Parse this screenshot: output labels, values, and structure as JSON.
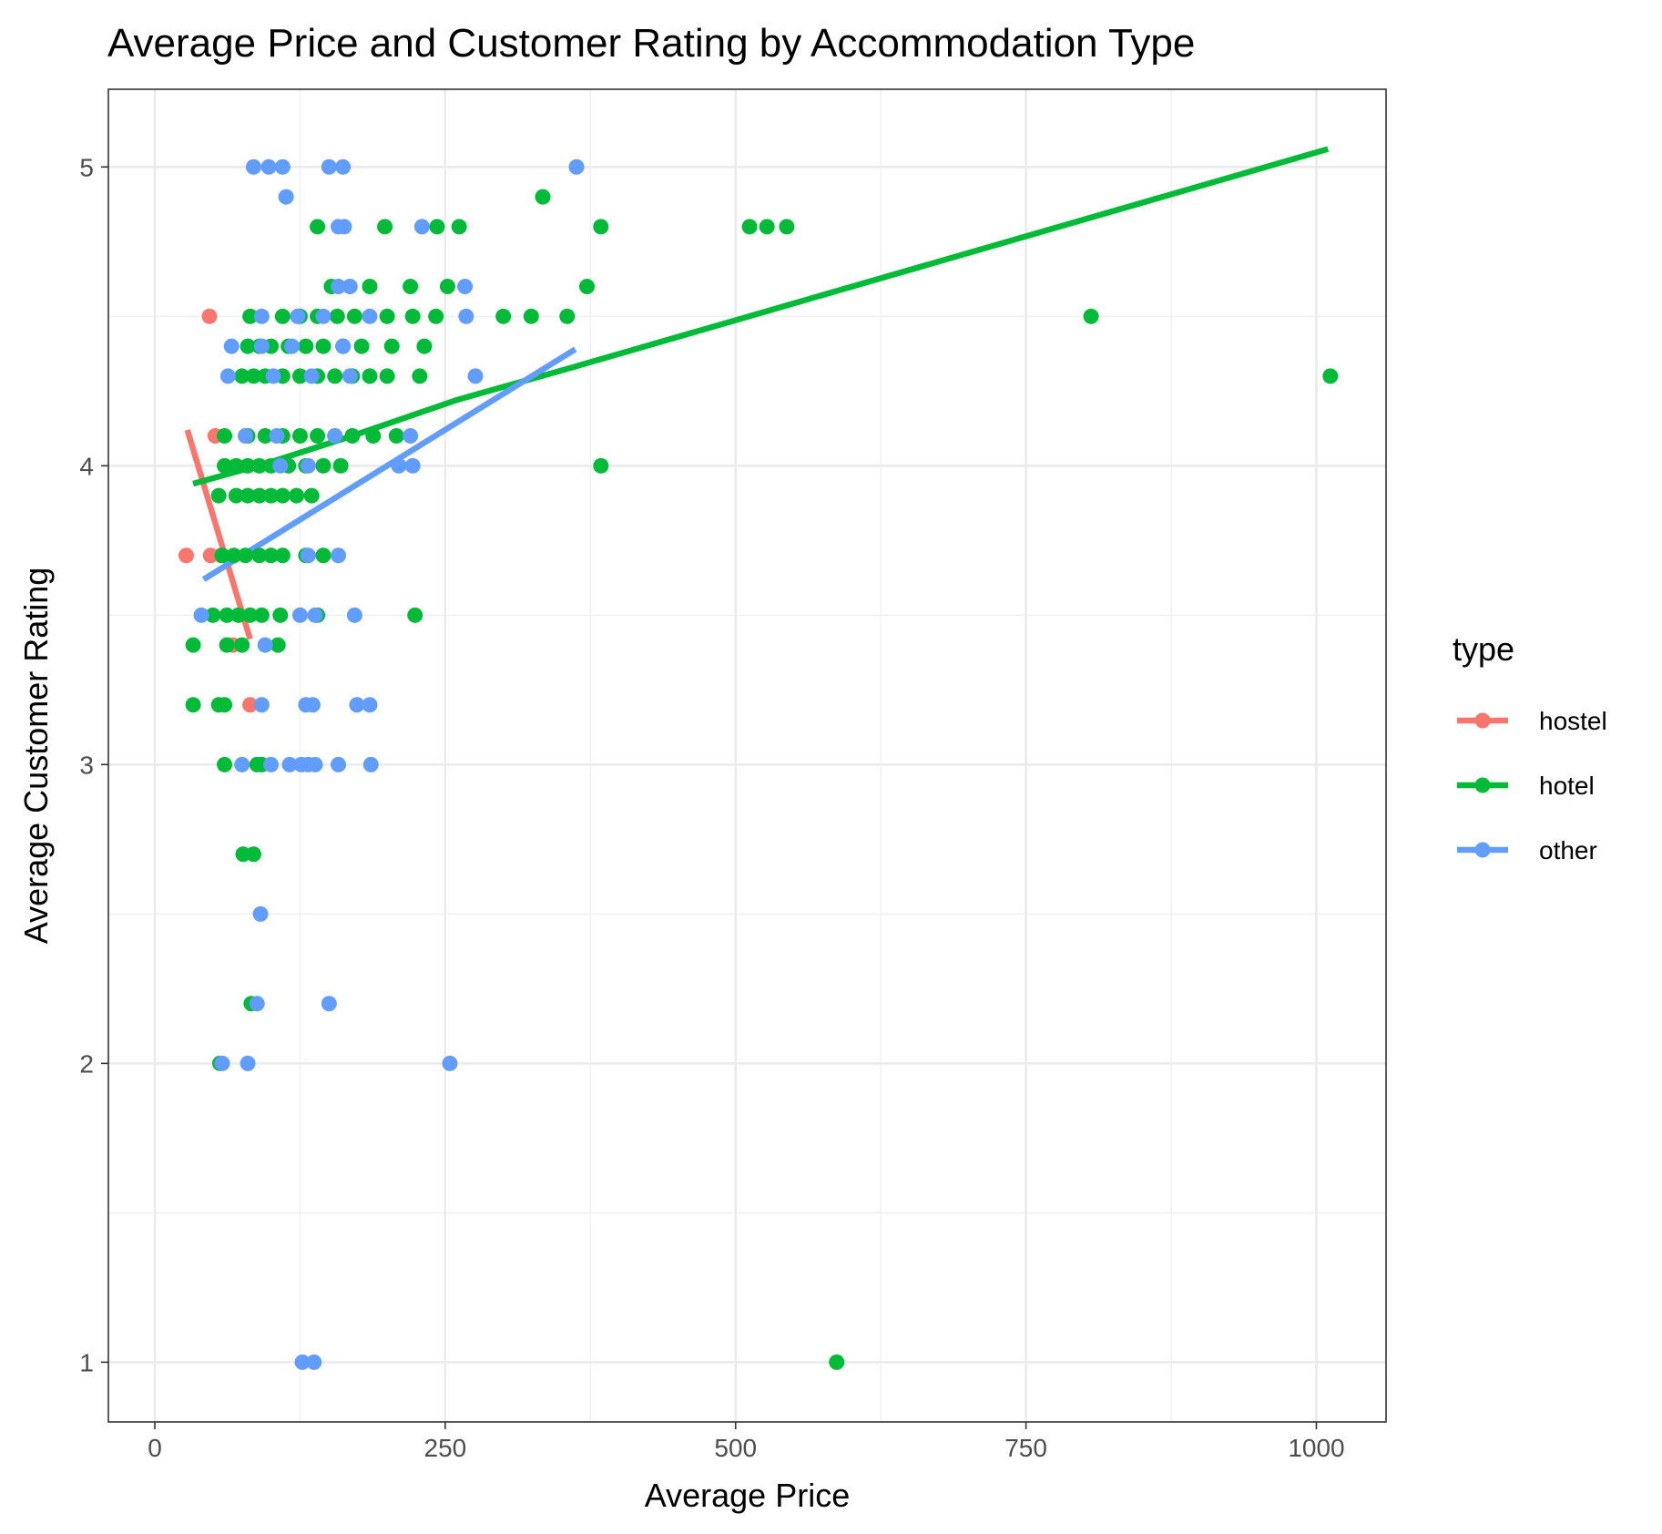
{
  "chart_data": {
    "type": "scatter",
    "title": "Average Price and Customer Rating by Accommodation Type",
    "xlabel": "Average Price",
    "ylabel": "Average Customer Rating",
    "xlim": [
      -40,
      1060
    ],
    "ylim": [
      0.8,
      5.26
    ],
    "x_ticks": [
      0,
      250,
      500,
      750,
      1000
    ],
    "x_tick_labels": [
      "0",
      "250",
      "500",
      "750",
      "1000"
    ],
    "y_ticks": [
      1,
      2,
      3,
      4,
      5
    ],
    "y_tick_labels": [
      "1",
      "2",
      "3",
      "4",
      "5"
    ],
    "grid": true,
    "legend": {
      "title": "type",
      "position": "right"
    },
    "series": [
      {
        "name": "hostel",
        "color": "#F8766D",
        "points": [
          [
            27,
            3.7
          ],
          [
            47,
            4.5
          ],
          [
            52,
            4.1
          ],
          [
            48,
            3.7
          ],
          [
            57,
            3.7
          ],
          [
            67,
            3.4
          ],
          [
            82,
            3.2
          ]
        ],
        "trend": [
          [
            28,
            4.12
          ],
          [
            82,
            3.42
          ]
        ]
      },
      {
        "name": "hotel",
        "color": "#00BA38",
        "points": [
          [
            140,
            4.8
          ],
          [
            198,
            4.8
          ],
          [
            243,
            4.8
          ],
          [
            262,
            4.8
          ],
          [
            334,
            4.9
          ],
          [
            384,
            4.8
          ],
          [
            512,
            4.8
          ],
          [
            527,
            4.8
          ],
          [
            544,
            4.8
          ],
          [
            152,
            4.6
          ],
          [
            185,
            4.6
          ],
          [
            220,
            4.6
          ],
          [
            252,
            4.6
          ],
          [
            372,
            4.6
          ],
          [
            82,
            4.5
          ],
          [
            110,
            4.5
          ],
          [
            125,
            4.5
          ],
          [
            140,
            4.5
          ],
          [
            157,
            4.5
          ],
          [
            172,
            4.5
          ],
          [
            200,
            4.5
          ],
          [
            222,
            4.5
          ],
          [
            242,
            4.5
          ],
          [
            300,
            4.5
          ],
          [
            324,
            4.5
          ],
          [
            355,
            4.5
          ],
          [
            806,
            4.5
          ],
          [
            80,
            4.4
          ],
          [
            90,
            4.4
          ],
          [
            100,
            4.4
          ],
          [
            115,
            4.4
          ],
          [
            130,
            4.4
          ],
          [
            145,
            4.4
          ],
          [
            162,
            4.4
          ],
          [
            178,
            4.4
          ],
          [
            204,
            4.4
          ],
          [
            232,
            4.4
          ],
          [
            75,
            4.3
          ],
          [
            85,
            4.3
          ],
          [
            95,
            4.3
          ],
          [
            110,
            4.3
          ],
          [
            125,
            4.3
          ],
          [
            140,
            4.3
          ],
          [
            155,
            4.3
          ],
          [
            170,
            4.3
          ],
          [
            185,
            4.3
          ],
          [
            200,
            4.3
          ],
          [
            228,
            4.3
          ],
          [
            1012,
            4.3
          ],
          [
            60,
            4.1
          ],
          [
            80,
            4.1
          ],
          [
            95,
            4.1
          ],
          [
            110,
            4.1
          ],
          [
            125,
            4.1
          ],
          [
            140,
            4.1
          ],
          [
            155,
            4.1
          ],
          [
            170,
            4.1
          ],
          [
            188,
            4.1
          ],
          [
            208,
            4.1
          ],
          [
            60,
            4.0
          ],
          [
            70,
            4.0
          ],
          [
            80,
            4.0
          ],
          [
            90,
            4.0
          ],
          [
            100,
            4.0
          ],
          [
            115,
            4.0
          ],
          [
            130,
            4.0
          ],
          [
            145,
            4.0
          ],
          [
            160,
            4.0
          ],
          [
            384,
            4.0
          ],
          [
            55,
            3.9
          ],
          [
            70,
            3.9
          ],
          [
            80,
            3.9
          ],
          [
            90,
            3.9
          ],
          [
            100,
            3.9
          ],
          [
            110,
            3.9
          ],
          [
            122,
            3.9
          ],
          [
            135,
            3.9
          ],
          [
            58,
            3.7
          ],
          [
            68,
            3.7
          ],
          [
            78,
            3.7
          ],
          [
            90,
            3.7
          ],
          [
            100,
            3.7
          ],
          [
            110,
            3.7
          ],
          [
            130,
            3.7
          ],
          [
            145,
            3.7
          ],
          [
            50,
            3.5
          ],
          [
            62,
            3.5
          ],
          [
            72,
            3.5
          ],
          [
            82,
            3.5
          ],
          [
            92,
            3.5
          ],
          [
            108,
            3.5
          ],
          [
            140,
            3.5
          ],
          [
            224,
            3.5
          ],
          [
            33,
            3.4
          ],
          [
            62,
            3.4
          ],
          [
            75,
            3.4
          ],
          [
            106,
            3.4
          ],
          [
            33,
            3.2
          ],
          [
            55,
            3.2
          ],
          [
            60,
            3.2
          ],
          [
            60,
            3.0
          ],
          [
            88,
            3.0
          ],
          [
            92,
            3.0
          ],
          [
            76,
            2.7
          ],
          [
            85,
            2.7
          ],
          [
            83,
            2.2
          ],
          [
            56,
            2.0
          ],
          [
            587,
            1.0
          ]
        ],
        "trend": [
          [
            33,
            3.94
          ],
          [
            98,
            4.01
          ],
          [
            170,
            4.1
          ],
          [
            260,
            4.22
          ],
          [
            360,
            4.33
          ],
          [
            1010,
            5.06
          ]
        ]
      },
      {
        "name": "other",
        "color": "#619CFF",
        "points": [
          [
            85,
            5.0
          ],
          [
            98,
            5.0
          ],
          [
            110,
            5.0
          ],
          [
            150,
            5.0
          ],
          [
            162,
            5.0
          ],
          [
            363,
            5.0
          ],
          [
            113,
            4.9
          ],
          [
            158,
            4.8
          ],
          [
            163,
            4.8
          ],
          [
            230,
            4.8
          ],
          [
            158,
            4.6
          ],
          [
            168,
            4.6
          ],
          [
            267,
            4.6
          ],
          [
            92,
            4.5
          ],
          [
            123,
            4.5
          ],
          [
            145,
            4.5
          ],
          [
            185,
            4.5
          ],
          [
            268,
            4.5
          ],
          [
            66,
            4.4
          ],
          [
            92,
            4.4
          ],
          [
            118,
            4.4
          ],
          [
            162,
            4.4
          ],
          [
            63,
            4.3
          ],
          [
            102,
            4.3
          ],
          [
            135,
            4.3
          ],
          [
            168,
            4.3
          ],
          [
            276,
            4.3
          ],
          [
            78,
            4.1
          ],
          [
            105,
            4.1
          ],
          [
            155,
            4.1
          ],
          [
            220,
            4.1
          ],
          [
            108,
            4.0
          ],
          [
            132,
            4.0
          ],
          [
            210,
            4.0
          ],
          [
            222,
            4.0
          ],
          [
            132,
            3.7
          ],
          [
            158,
            3.7
          ],
          [
            40,
            3.5
          ],
          [
            125,
            3.5
          ],
          [
            138,
            3.5
          ],
          [
            172,
            3.5
          ],
          [
            95,
            3.4
          ],
          [
            92,
            3.2
          ],
          [
            130,
            3.2
          ],
          [
            136,
            3.2
          ],
          [
            174,
            3.2
          ],
          [
            185,
            3.2
          ],
          [
            75,
            3.0
          ],
          [
            100,
            3.0
          ],
          [
            116,
            3.0
          ],
          [
            126,
            3.0
          ],
          [
            132,
            3.0
          ],
          [
            138,
            3.0
          ],
          [
            158,
            3.0
          ],
          [
            186,
            3.0
          ],
          [
            91,
            2.5
          ],
          [
            88,
            2.2
          ],
          [
            150,
            2.2
          ],
          [
            58,
            2.0
          ],
          [
            80,
            2.0
          ],
          [
            254,
            2.0
          ],
          [
            127,
            1.0
          ],
          [
            137,
            1.0
          ]
        ],
        "trend": [
          [
            42,
            3.62
          ],
          [
            362,
            4.39
          ]
        ]
      }
    ]
  }
}
